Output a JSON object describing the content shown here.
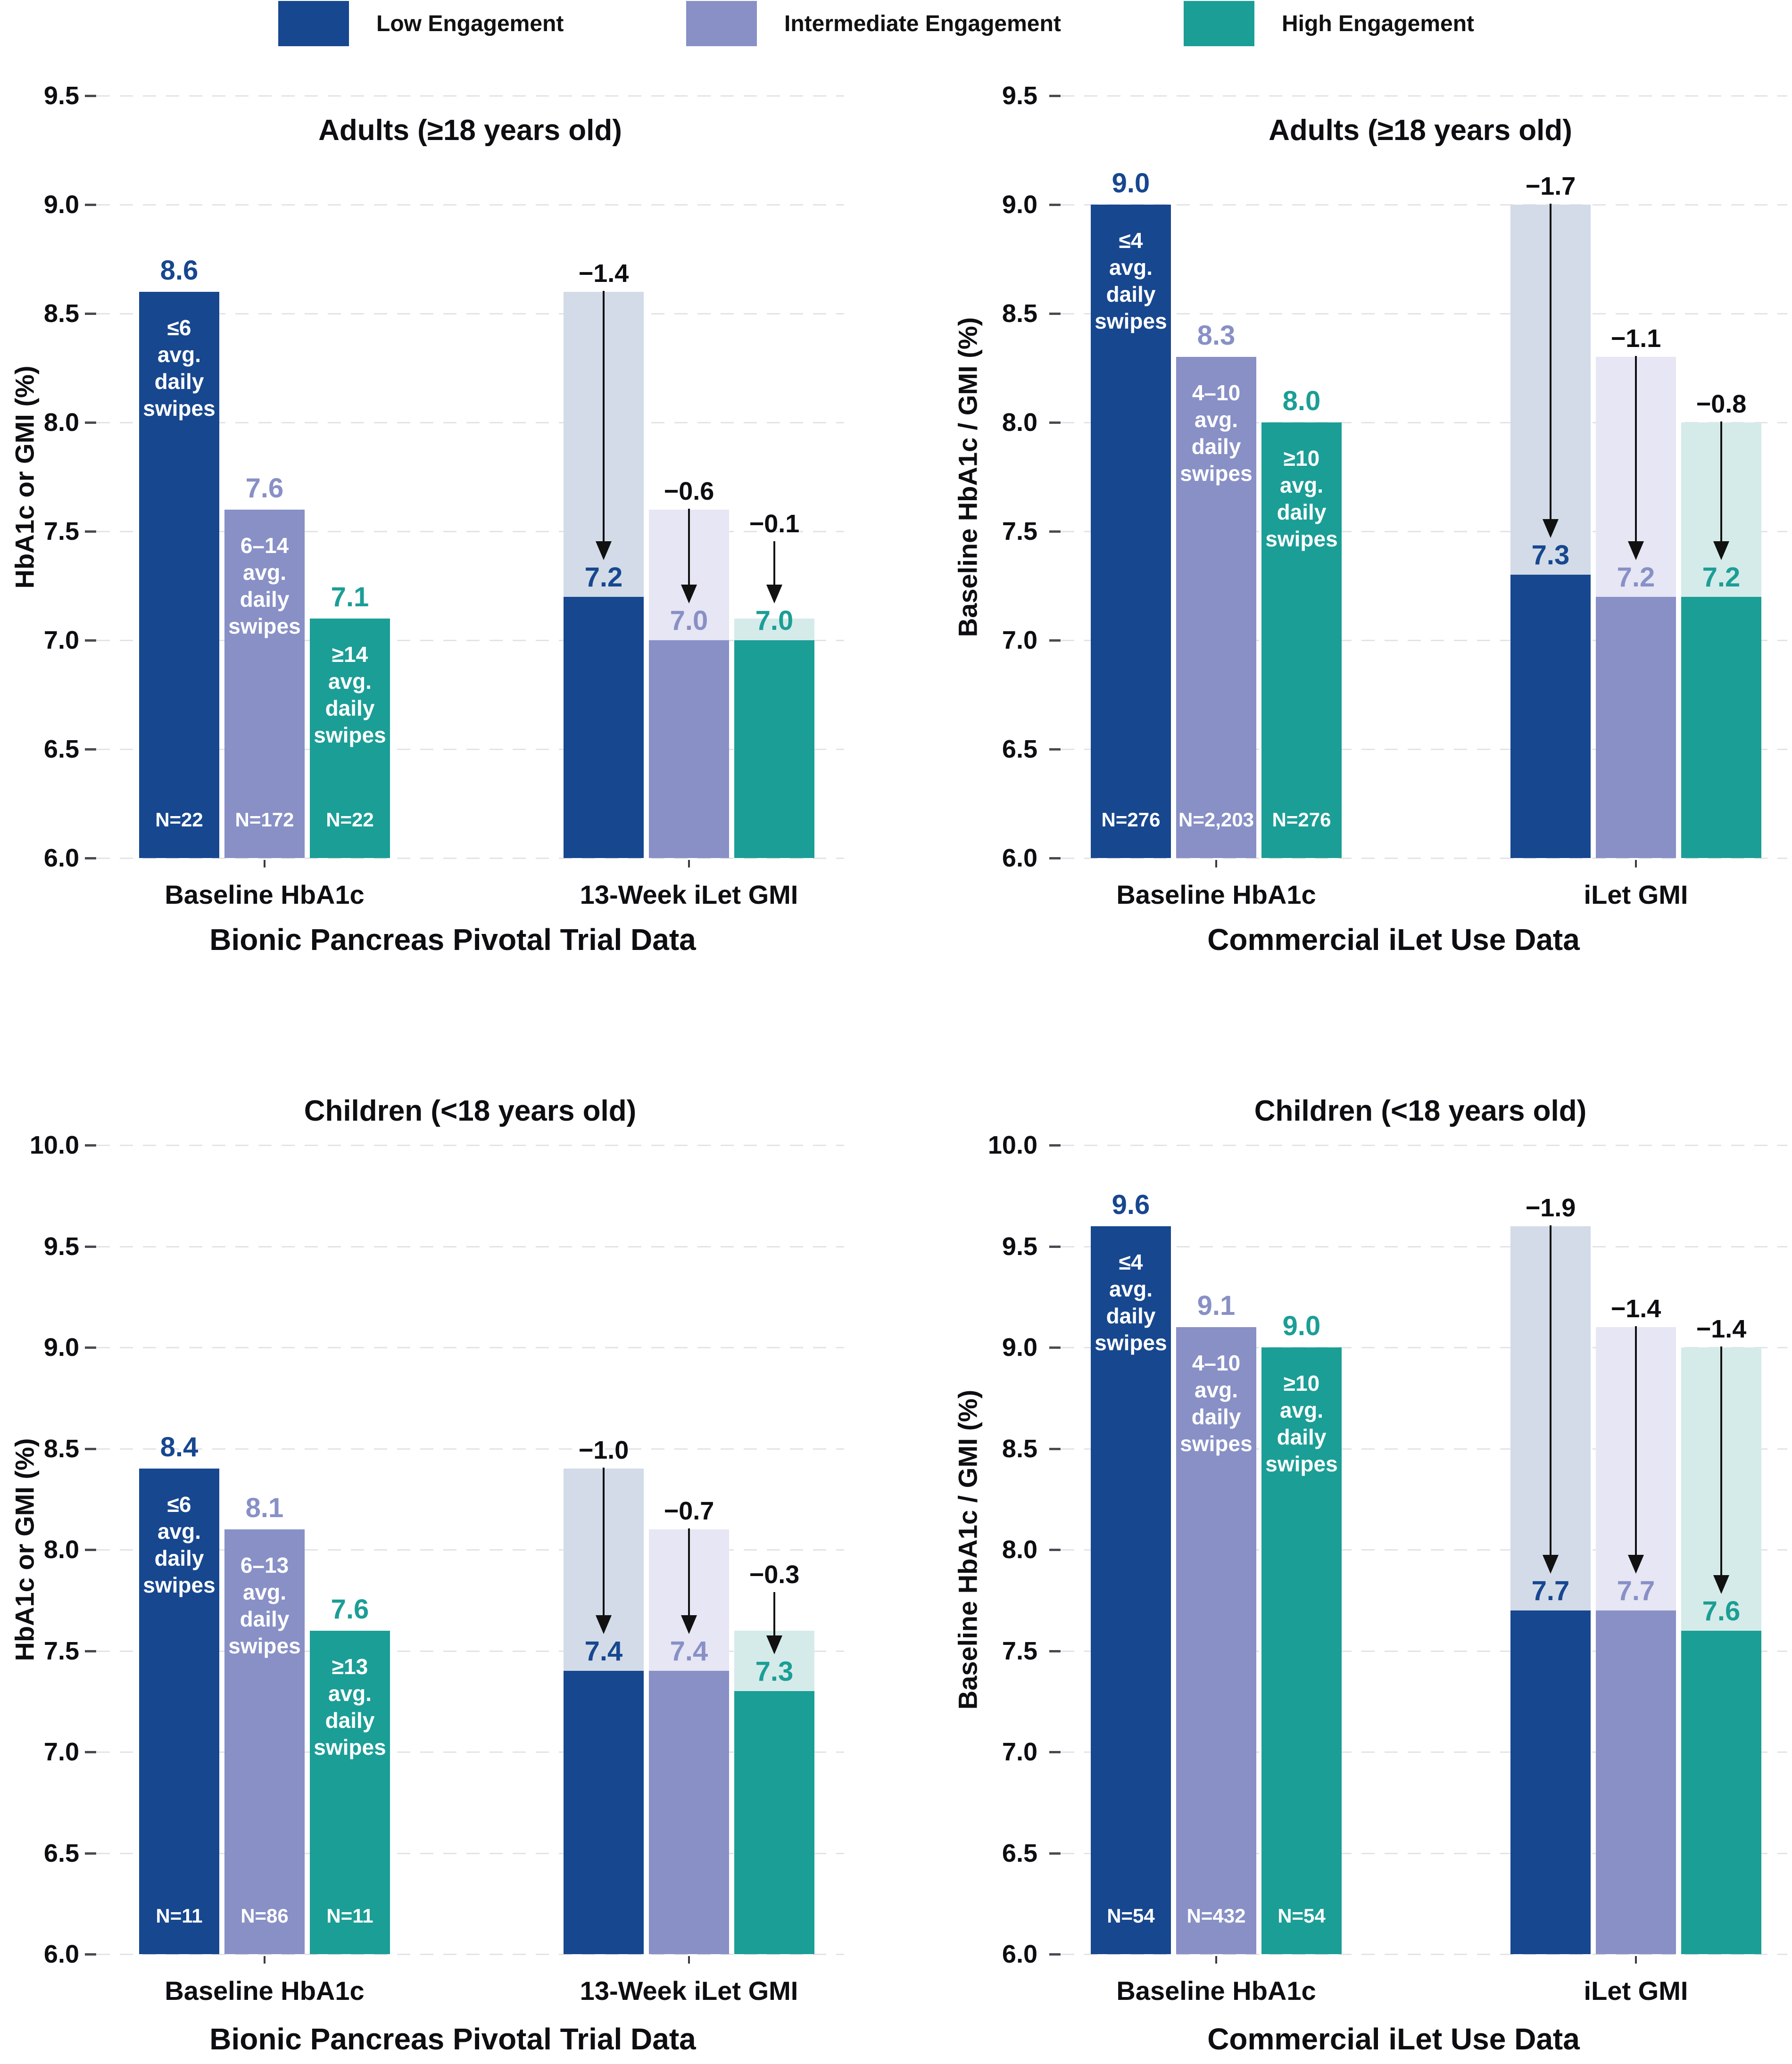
{
  "legend": {
    "items": [
      {
        "key": "low",
        "label": "Low Engagement",
        "color": "#17478f",
        "ghost_color": "#d2dbe7"
      },
      {
        "key": "intermediate",
        "label": "Intermediate Engagement",
        "color": "#8890c6",
        "ghost_color": "#e6e6f4"
      },
      {
        "key": "high",
        "label": "High Engagement",
        "color": "#1b9e96",
        "ghost_color": "#d5ebe9"
      }
    ]
  },
  "chart_data": {
    "type": "bar",
    "grid": "on",
    "legend_position": "top",
    "grid_color": "#e4e4e8",
    "text_color": "#0e0e12",
    "panels": [
      {
        "id": "adults-pivotal-trial",
        "title": "Adults (≥18 years old)",
        "ylabel": "HbA1c or GMI (%)",
        "footer": "Bionic Pancreas Pivotal Trial Data",
        "ylim": [
          6.0,
          9.5
        ],
        "yticks": [
          "9.5",
          "9.0",
          "8.5",
          "8.0",
          "7.5",
          "7.0",
          "6.5",
          "6.0"
        ],
        "groups": [
          {
            "label": "Baseline HbA1c",
            "kind": "baseline",
            "bars": [
              {
                "series": "low",
                "value": 8.6,
                "value_label": "8.6",
                "bar_text": [
                  "≤6",
                  "avg.",
                  "daily",
                  "swipes"
                ],
                "n_label": "N=22"
              },
              {
                "series": "intermediate",
                "value": 7.6,
                "value_label": "7.6",
                "bar_text": [
                  "6–14",
                  "avg.",
                  "daily",
                  "swipes"
                ],
                "n_label": "N=172"
              },
              {
                "series": "high",
                "value": 7.1,
                "value_label": "7.1",
                "bar_text": [
                  "≥14",
                  "avg.",
                  "daily",
                  "swipes"
                ],
                "n_label": "N=22"
              }
            ]
          },
          {
            "label": "13-Week iLet GMI",
            "kind": "change",
            "bars": [
              {
                "series": "low",
                "baseline_value": 8.6,
                "value": 7.2,
                "value_label": "7.2",
                "delta_label": "−1.4"
              },
              {
                "series": "intermediate",
                "baseline_value": 7.6,
                "value": 7.0,
                "value_label": "7.0",
                "delta_label": "−0.6"
              },
              {
                "series": "high",
                "baseline_value": 7.1,
                "value": 7.0,
                "value_label": "7.0",
                "delta_label": "−0.1"
              }
            ]
          }
        ]
      },
      {
        "id": "adults-commercial",
        "title": "Adults (≥18 years old)",
        "ylabel": "Baseline HbA1c / GMI (%)",
        "footer": "Commercial iLet Use Data",
        "ylim": [
          6.0,
          9.5
        ],
        "yticks": [
          "9.5",
          "9.0",
          "8.5",
          "8.0",
          "7.5",
          "7.0",
          "6.5",
          "6.0"
        ],
        "groups": [
          {
            "label": "Baseline HbA1c",
            "kind": "baseline",
            "bars": [
              {
                "series": "low",
                "value": 9.0,
                "value_label": "9.0",
                "bar_text": [
                  "≤4",
                  "avg.",
                  "daily",
                  "swipes"
                ],
                "n_label": "N=276"
              },
              {
                "series": "intermediate",
                "value": 8.3,
                "value_label": "8.3",
                "bar_text": [
                  "4–10",
                  "avg.",
                  "daily",
                  "swipes"
                ],
                "n_label": "N=2,203"
              },
              {
                "series": "high",
                "value": 8.0,
                "value_label": "8.0",
                "bar_text": [
                  "≥10",
                  "avg.",
                  "daily",
                  "swipes"
                ],
                "n_label": "N=276"
              }
            ]
          },
          {
            "label": "iLet GMI",
            "kind": "change",
            "bars": [
              {
                "series": "low",
                "baseline_value": 9.0,
                "value": 7.3,
                "value_label": "7.3",
                "delta_label": "−1.7"
              },
              {
                "series": "intermediate",
                "baseline_value": 8.3,
                "value": 7.2,
                "value_label": "7.2",
                "delta_label": "−1.1"
              },
              {
                "series": "high",
                "baseline_value": 8.0,
                "value": 7.2,
                "value_label": "7.2",
                "delta_label": "−0.8"
              }
            ]
          }
        ]
      },
      {
        "id": "children-pivotal-trial",
        "title": "Children (<18 years old)",
        "ylabel": "HbA1c or GMI (%)",
        "footer": "Bionic Pancreas Pivotal Trial Data",
        "ylim": [
          6.0,
          10.0
        ],
        "yticks": [
          "10.0",
          "9.5",
          "9.0",
          "8.5",
          "8.0",
          "7.5",
          "7.0",
          "6.5",
          "6.0"
        ],
        "groups": [
          {
            "label": "Baseline HbA1c",
            "kind": "baseline",
            "bars": [
              {
                "series": "low",
                "value": 8.4,
                "value_label": "8.4",
                "bar_text": [
                  "≤6",
                  "avg.",
                  "daily",
                  "swipes"
                ],
                "n_label": "N=11"
              },
              {
                "series": "intermediate",
                "value": 8.1,
                "value_label": "8.1",
                "bar_text": [
                  "6–13",
                  "avg.",
                  "daily",
                  "swipes"
                ],
                "n_label": "N=86"
              },
              {
                "series": "high",
                "value": 7.6,
                "value_label": "7.6",
                "bar_text": [
                  "≥13",
                  "avg.",
                  "daily",
                  "swipes"
                ],
                "n_label": "N=11"
              }
            ]
          },
          {
            "label": "13-Week iLet GMI",
            "kind": "change",
            "bars": [
              {
                "series": "low",
                "baseline_value": 8.4,
                "value": 7.4,
                "value_label": "7.4",
                "delta_label": "−1.0"
              },
              {
                "series": "intermediate",
                "baseline_value": 8.1,
                "value": 7.4,
                "value_label": "7.4",
                "delta_label": "−0.7"
              },
              {
                "series": "high",
                "baseline_value": 7.6,
                "value": 7.3,
                "value_label": "7.3",
                "delta_label": "−0.3"
              }
            ]
          }
        ]
      },
      {
        "id": "children-commercial",
        "title": "Children (<18 years old)",
        "ylabel": "Baseline HbA1c / GMI (%)",
        "footer": "Commercial iLet Use Data",
        "ylim": [
          6.0,
          10.0
        ],
        "yticks": [
          "10.0",
          "9.5",
          "9.0",
          "8.5",
          "8.0",
          "7.5",
          "7.0",
          "6.5",
          "6.0"
        ],
        "groups": [
          {
            "label": "Baseline HbA1c",
            "kind": "baseline",
            "bars": [
              {
                "series": "low",
                "value": 9.6,
                "value_label": "9.6",
                "bar_text": [
                  "≤4",
                  "avg.",
                  "daily",
                  "swipes"
                ],
                "n_label": "N=54"
              },
              {
                "series": "intermediate",
                "value": 9.1,
                "value_label": "9.1",
                "bar_text": [
                  "4–10",
                  "avg.",
                  "daily",
                  "swipes"
                ],
                "n_label": "N=432"
              },
              {
                "series": "high",
                "value": 9.0,
                "value_label": "9.0",
                "bar_text": [
                  "≥10",
                  "avg.",
                  "daily",
                  "swipes"
                ],
                "n_label": "N=54"
              }
            ]
          },
          {
            "label": "iLet GMI",
            "kind": "change",
            "bars": [
              {
                "series": "low",
                "baseline_value": 9.6,
                "value": 7.7,
                "value_label": "7.7",
                "delta_label": "−1.9"
              },
              {
                "series": "intermediate",
                "baseline_value": 9.1,
                "value": 7.7,
                "value_label": "7.7",
                "delta_label": "−1.4"
              },
              {
                "series": "high",
                "baseline_value": 9.0,
                "value": 7.6,
                "value_label": "7.6",
                "delta_label": "−1.4"
              }
            ]
          }
        ]
      }
    ]
  }
}
